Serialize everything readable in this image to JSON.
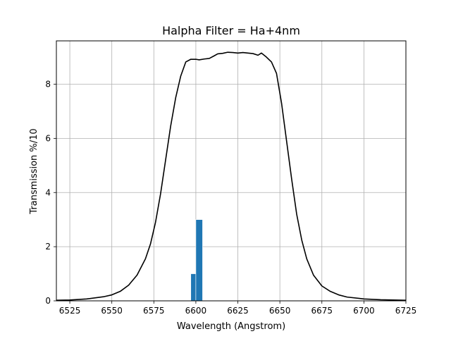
{
  "chart_data": {
    "type": "line",
    "title": "Halpha Filter = Ha+4nm",
    "xlabel": "Wavelength (Angstrom)",
    "ylabel": "Transmission %/10",
    "xlim": [
      6517,
      6725
    ],
    "ylim": [
      0,
      9.6
    ],
    "x_ticks": [
      6525,
      6550,
      6575,
      6600,
      6625,
      6650,
      6675,
      6700,
      6725
    ],
    "y_ticks": [
      0,
      2,
      4,
      6,
      8
    ],
    "grid": true,
    "curve_color": "#000000",
    "bar_color": "#1f77b4",
    "series": [
      {
        "x": [
          6517,
          6525,
          6535,
          6545,
          6550,
          6555,
          6560,
          6565,
          6570,
          6573,
          6576,
          6579,
          6582,
          6585,
          6588,
          6591,
          6594,
          6597,
          6600,
          6602,
          6605,
          6608,
          6611,
          6613,
          6616,
          6619,
          6622,
          6625,
          6628,
          6631,
          6634,
          6637,
          6639,
          6642,
          6645,
          6648,
          6651,
          6654,
          6657,
          6660,
          6663,
          6666,
          6670,
          6675,
          6680,
          6685,
          6690,
          6700,
          6710,
          6725
        ],
        "y": [
          0.02,
          0.03,
          0.07,
          0.15,
          0.22,
          0.35,
          0.58,
          0.95,
          1.55,
          2.1,
          2.9,
          3.95,
          5.2,
          6.45,
          7.5,
          8.3,
          8.82,
          8.92,
          8.92,
          8.9,
          8.93,
          8.95,
          9.05,
          9.12,
          9.14,
          9.18,
          9.17,
          9.15,
          9.17,
          9.15,
          9.13,
          9.07,
          9.15,
          9.0,
          8.82,
          8.4,
          7.3,
          5.9,
          4.5,
          3.2,
          2.25,
          1.55,
          0.95,
          0.55,
          0.35,
          0.22,
          0.14,
          0.07,
          0.04,
          0.02
        ]
      }
    ],
    "histogram": [
      {
        "x_start": 6597,
        "x_end": 6600,
        "value": 1
      },
      {
        "x_start": 6600,
        "x_end": 6604,
        "value": 3
      }
    ]
  }
}
